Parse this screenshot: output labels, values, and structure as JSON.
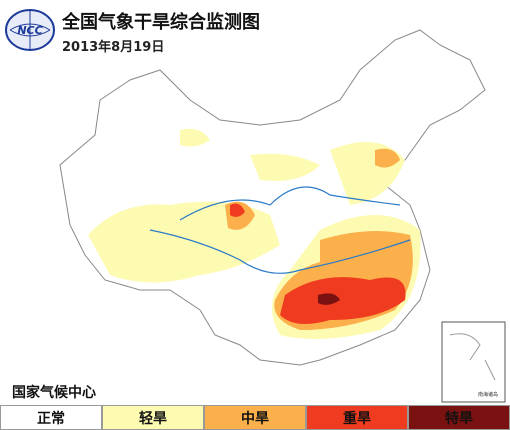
{
  "header": {
    "logo": "NCC",
    "title": "全国气象干旱综合监测图",
    "date": "2013年8月19日"
  },
  "organization": "国家气候中心",
  "inset_label": "南海诸岛",
  "legend": [
    {
      "label": "正常",
      "color": "#ffffff"
    },
    {
      "label": "轻旱",
      "color": "#fdfab2"
    },
    {
      "label": "中旱",
      "color": "#fbb04b"
    },
    {
      "label": "重旱",
      "color": "#ef3b1f"
    },
    {
      "label": "特旱",
      "color": "#7b1212"
    }
  ]
}
